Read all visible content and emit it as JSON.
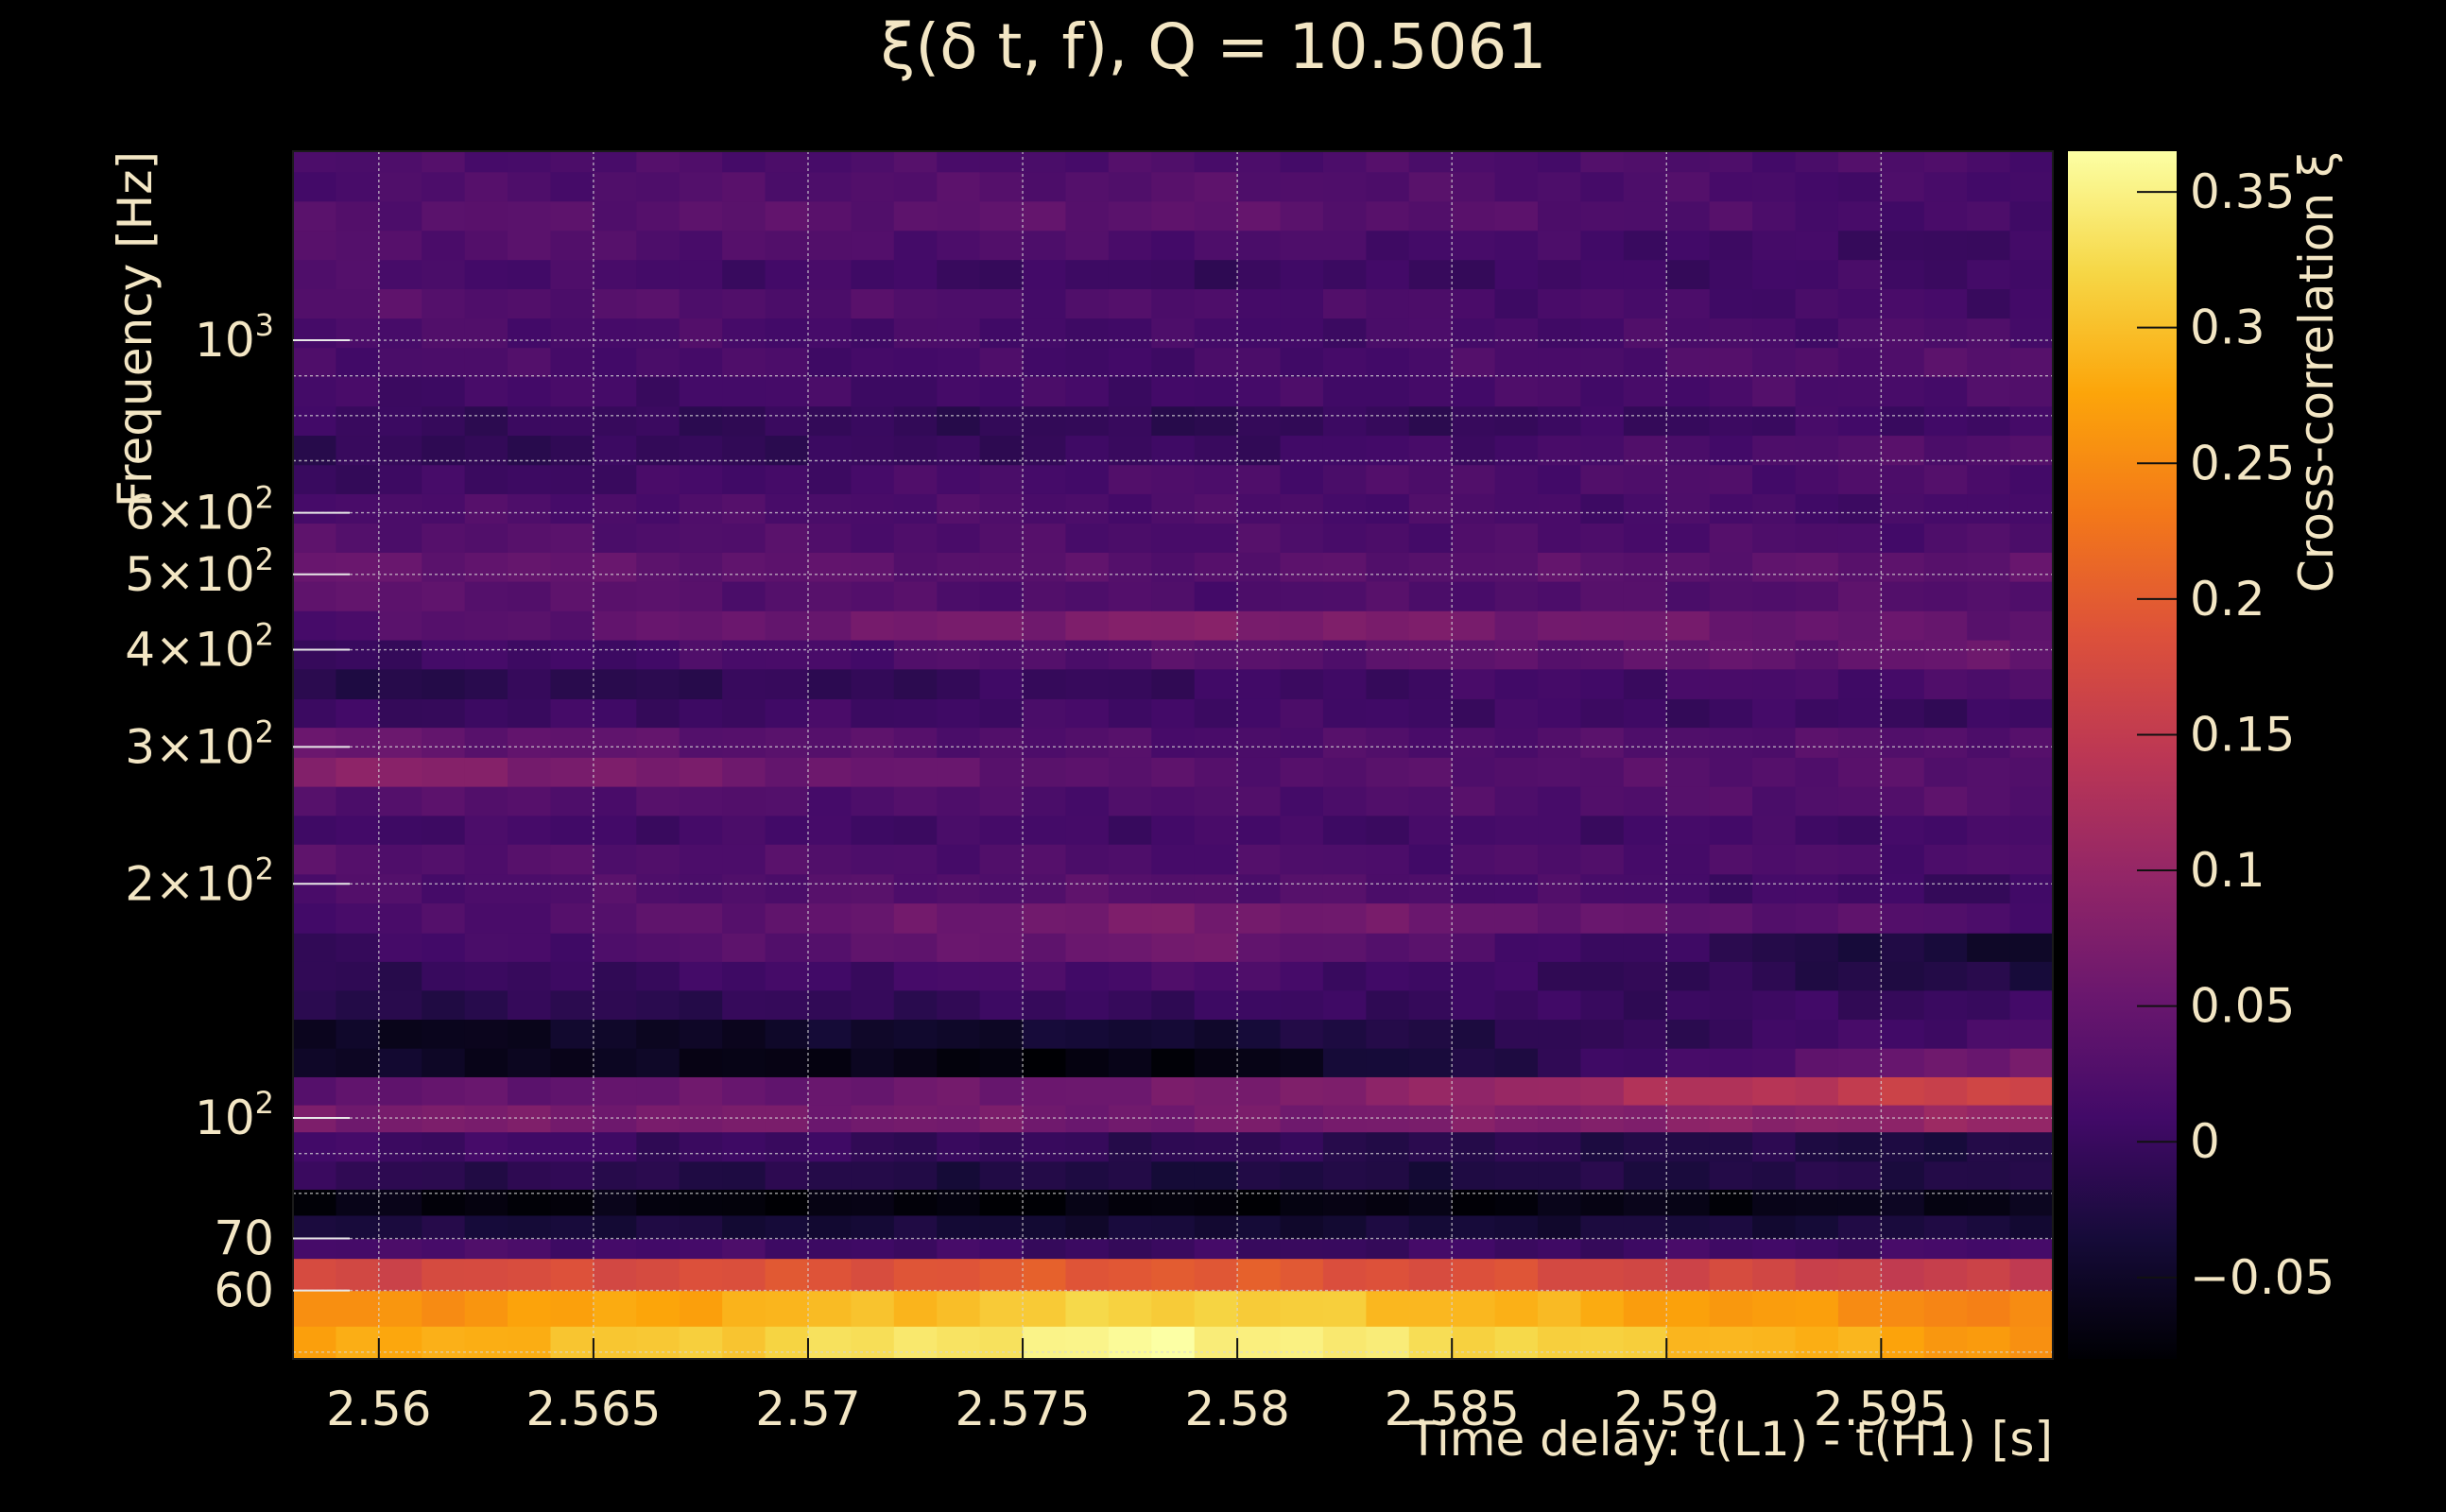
{
  "chart_data": {
    "type": "heatmap",
    "title": "ξ(δ t, f), Q = 10.5061",
    "xlabel": "Time delay: t(L1) - t(H1) [s]",
    "ylabel": "Frequency [Hz]",
    "colorbar_label": "Cross-correlation ξ",
    "x_range": [
      2.558,
      2.599
    ],
    "y_range": [
      49,
      1750
    ],
    "y_scale": "log",
    "color_range": [
      -0.08,
      0.365
    ],
    "grid": true,
    "colormap": "inferno",
    "x_ticks": [
      {
        "value": 2.56,
        "label": "2.56"
      },
      {
        "value": 2.565,
        "label": "2.565"
      },
      {
        "value": 2.57,
        "label": "2.57"
      },
      {
        "value": 2.575,
        "label": "2.575"
      },
      {
        "value": 2.58,
        "label": "2.58"
      },
      {
        "value": 2.585,
        "label": "2.585"
      },
      {
        "value": 2.59,
        "label": "2.59"
      },
      {
        "value": 2.595,
        "label": "2.595"
      }
    ],
    "y_ticks": [
      {
        "value": 60,
        "label": "60"
      },
      {
        "value": 70,
        "label": "70"
      },
      {
        "value": 100,
        "label": "10",
        "exp": "2"
      },
      {
        "value": 200,
        "label": "2×10",
        "exp": "2"
      },
      {
        "value": 300,
        "label": "3×10",
        "exp": "2"
      },
      {
        "value": 400,
        "label": "4×10",
        "exp": "2"
      },
      {
        "value": 500,
        "label": "5×10",
        "exp": "2"
      },
      {
        "value": 600,
        "label": "6×10",
        "exp": "2"
      },
      {
        "value": 1000,
        "label": "10",
        "exp": "3"
      }
    ],
    "colorbar_ticks": [
      {
        "value": 0.35,
        "label": "0.35"
      },
      {
        "value": 0.3,
        "label": "0.3"
      },
      {
        "value": 0.25,
        "label": "0.25"
      },
      {
        "value": 0.2,
        "label": "0.2"
      },
      {
        "value": 0.15,
        "label": "0.15"
      },
      {
        "value": 0.1,
        "label": "0.1"
      },
      {
        "value": 0.05,
        "label": "0.05"
      },
      {
        "value": 0,
        "label": "0"
      },
      {
        "value": -0.05,
        "label": "−0.05"
      }
    ],
    "time_bins": 41,
    "frequency_bands": [
      {
        "f_low": 49,
        "f_high": 54,
        "values_start": 0.27,
        "values_mid": 0.36,
        "values_end": 0.26
      },
      {
        "f_low": 54,
        "f_high": 60,
        "values_start": 0.25,
        "values_mid": 0.32,
        "values_end": 0.24
      },
      {
        "f_low": 60,
        "f_high": 66,
        "values_start": 0.17,
        "values_mid": 0.2,
        "values_end": 0.15
      },
      {
        "f_low": 66,
        "f_high": 70,
        "values_start": 0.02,
        "values_mid": 0.0,
        "values_end": 0.01
      },
      {
        "f_low": 70,
        "f_high": 75,
        "values_start": -0.03,
        "values_mid": -0.04,
        "values_end": -0.03
      },
      {
        "f_low": 75,
        "f_high": 81,
        "values_start": -0.07,
        "values_mid": -0.075,
        "values_end": -0.06
      },
      {
        "f_low": 81,
        "f_high": 88,
        "values_start": -0.01,
        "values_mid": -0.03,
        "values_end": -0.02
      },
      {
        "f_low": 88,
        "f_high": 96,
        "values_start": 0.01,
        "values_mid": -0.01,
        "values_end": -0.03
      },
      {
        "f_low": 96,
        "f_high": 104,
        "values_start": 0.07,
        "values_mid": 0.06,
        "values_end": 0.1
      },
      {
        "f_low": 104,
        "f_high": 113,
        "values_start": 0.04,
        "values_mid": 0.06,
        "values_end": 0.17
      },
      {
        "f_low": 113,
        "f_high": 123,
        "values_start": -0.05,
        "values_mid": -0.075,
        "values_end": 0.07
      },
      {
        "f_low": 123,
        "f_high": 134,
        "values_start": -0.06,
        "values_mid": -0.04,
        "values_end": 0.02
      },
      {
        "f_low": 134,
        "f_high": 146,
        "values_start": -0.02,
        "values_mid": 0.0,
        "values_end": 0.0
      },
      {
        "f_low": 146,
        "f_high": 159,
        "values_start": -0.01,
        "values_mid": 0.02,
        "values_end": -0.03
      },
      {
        "f_low": 159,
        "f_high": 173,
        "values_start": 0.0,
        "values_mid": 0.06,
        "values_end": -0.05
      },
      {
        "f_low": 173,
        "f_high": 189,
        "values_start": 0.01,
        "values_mid": 0.07,
        "values_end": 0.02
      },
      {
        "f_low": 189,
        "f_high": 206,
        "values_start": 0.02,
        "values_mid": 0.03,
        "values_end": 0.0
      },
      {
        "f_low": 206,
        "f_high": 225,
        "values_start": 0.03,
        "values_mid": 0.02,
        "values_end": 0.02
      },
      {
        "f_low": 225,
        "f_high": 245,
        "values_start": 0.01,
        "values_mid": 0.01,
        "values_end": 0.01
      },
      {
        "f_low": 245,
        "f_high": 267,
        "values_start": 0.03,
        "values_mid": 0.02,
        "values_end": 0.03
      },
      {
        "f_low": 267,
        "f_high": 291,
        "values_start": 0.09,
        "values_mid": 0.03,
        "values_end": 0.03
      },
      {
        "f_low": 291,
        "f_high": 318,
        "values_start": 0.05,
        "values_mid": 0.02,
        "values_end": 0.03
      },
      {
        "f_low": 318,
        "f_high": 346,
        "values_start": 0.0,
        "values_mid": 0.01,
        "values_end": 0.0
      },
      {
        "f_low": 346,
        "f_high": 378,
        "values_start": -0.02,
        "values_mid": 0.0,
        "values_end": 0.02
      },
      {
        "f_low": 378,
        "f_high": 412,
        "values_start": 0.0,
        "values_mid": 0.03,
        "values_end": 0.05
      },
      {
        "f_low": 412,
        "f_high": 449,
        "values_start": 0.02,
        "values_mid": 0.08,
        "values_end": 0.04
      },
      {
        "f_low": 449,
        "f_high": 490,
        "values_start": 0.04,
        "values_mid": 0.02,
        "values_end": 0.03
      },
      {
        "f_low": 490,
        "f_high": 534,
        "values_start": 0.05,
        "values_mid": 0.03,
        "values_end": 0.04
      },
      {
        "f_low": 534,
        "f_high": 582,
        "values_start": 0.03,
        "values_mid": 0.02,
        "values_end": 0.02
      },
      {
        "f_low": 582,
        "f_high": 635,
        "values_start": 0.02,
        "values_mid": 0.02,
        "values_end": 0.01
      },
      {
        "f_low": 635,
        "f_high": 692,
        "values_start": 0.0,
        "values_mid": 0.02,
        "values_end": 0.02
      },
      {
        "f_low": 692,
        "f_high": 755,
        "values_start": -0.01,
        "values_mid": 0.0,
        "values_end": 0.03
      },
      {
        "f_low": 755,
        "f_high": 823,
        "values_start": 0.0,
        "values_mid": -0.01,
        "values_end": 0.01
      },
      {
        "f_low": 823,
        "f_high": 898,
        "values_start": 0.01,
        "values_mid": 0.01,
        "values_end": 0.02
      },
      {
        "f_low": 898,
        "f_high": 979,
        "values_start": 0.02,
        "values_mid": 0.01,
        "values_end": 0.03
      },
      {
        "f_low": 979,
        "f_high": 1068,
        "values_start": 0.02,
        "values_mid": 0.01,
        "values_end": 0.02
      },
      {
        "f_low": 1068,
        "f_high": 1165,
        "values_start": 0.03,
        "values_mid": 0.02,
        "values_end": 0.01
      },
      {
        "f_low": 1165,
        "f_high": 1270,
        "values_start": 0.02,
        "values_mid": 0.0,
        "values_end": 0.01
      },
      {
        "f_low": 1270,
        "f_high": 1385,
        "values_start": 0.03,
        "values_mid": 0.02,
        "values_end": 0.0
      },
      {
        "f_low": 1385,
        "f_high": 1510,
        "values_start": 0.03,
        "values_mid": 0.04,
        "values_end": 0.01
      },
      {
        "f_low": 1510,
        "f_high": 1647,
        "values_start": 0.02,
        "values_mid": 0.03,
        "values_end": 0.01
      },
      {
        "f_low": 1647,
        "f_high": 1750,
        "values_start": 0.02,
        "values_mid": 0.02,
        "values_end": 0.02
      }
    ]
  }
}
